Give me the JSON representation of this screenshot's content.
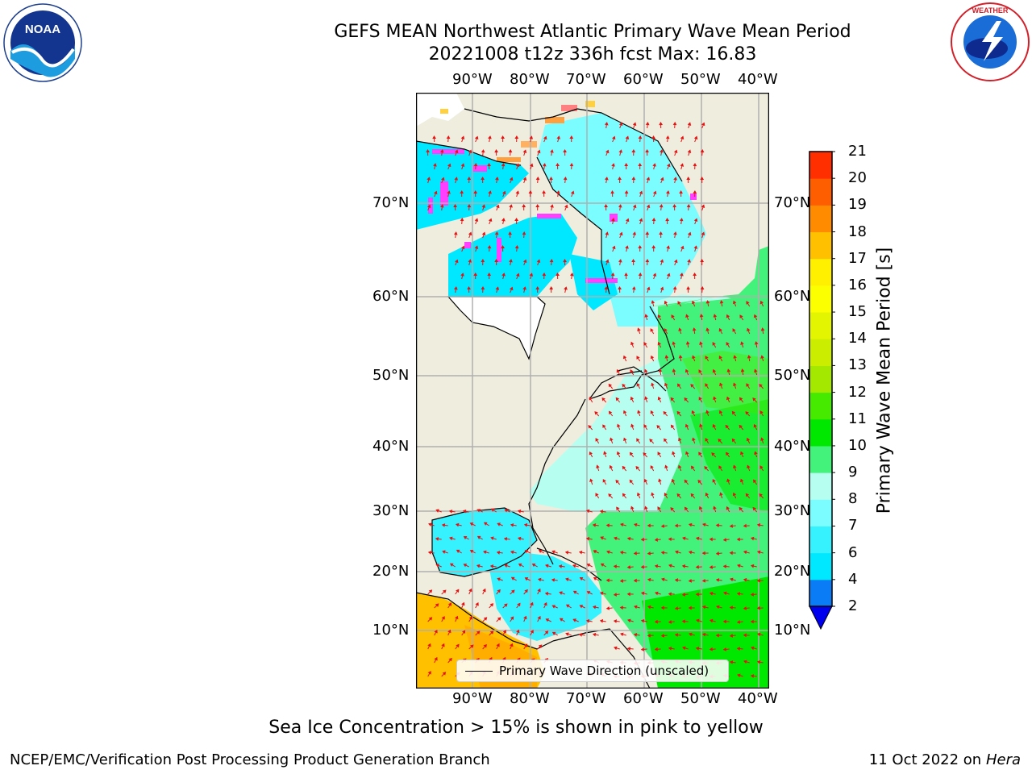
{
  "header": {
    "title_line1": "GEFS MEAN Northwest Atlantic Primary Wave Mean Period",
    "title_line2": "20221008 t12z 336h fcst   Max: 16.83"
  },
  "logos": {
    "left": {
      "text": "NOAA",
      "ring_text": "NATIONAL OCEANIC AND ATMOSPHERIC ADMINISTRATION · U.S. DEPARTMENT OF COMMERCE"
    },
    "right": {
      "ring_text": "NATIONAL WEATHER SERVICE"
    }
  },
  "map": {
    "lon_labels": [
      "90°W",
      "80°W",
      "70°W",
      "60°W",
      "50°W",
      "40°W"
    ],
    "lat_labels": [
      "70°N",
      "60°N",
      "50°N",
      "40°N",
      "30°N",
      "20°N",
      "10°N"
    ],
    "legend_label": "Primary Wave Direction (unscaled)",
    "colors": {
      "land": "#efedde",
      "grid": "#b0b0b0",
      "arrows": "#e81010",
      "coast": "#000000"
    }
  },
  "colorbar": {
    "label": "Primary Wave Mean Period [s]",
    "ticks": [
      "2",
      "4",
      "6",
      "7",
      "8",
      "9",
      "10",
      "11",
      "12",
      "13",
      "14",
      "15",
      "16",
      "17",
      "18",
      "19",
      "20",
      "21"
    ],
    "colors": [
      "#0a7cf5",
      "#00e8ff",
      "#36f2ff",
      "#7bfdff",
      "#b6fff0",
      "#42f27a",
      "#00e800",
      "#45ea00",
      "#a4e800",
      "#cbee00",
      "#e3f500",
      "#fcff00",
      "#fff000",
      "#ffc000",
      "#ff8c00",
      "#ff5e00",
      "#ff2f00"
    ],
    "extend_color": "#0000ee"
  },
  "footnote": "Sea Ice Concentration > 15% is shown in pink to yellow",
  "credits": {
    "left": "NCEP/EMC/Verification Post Processing Product Generation Branch",
    "right_date": "11 Oct 2022 on",
    "right_host": "Hera"
  }
}
